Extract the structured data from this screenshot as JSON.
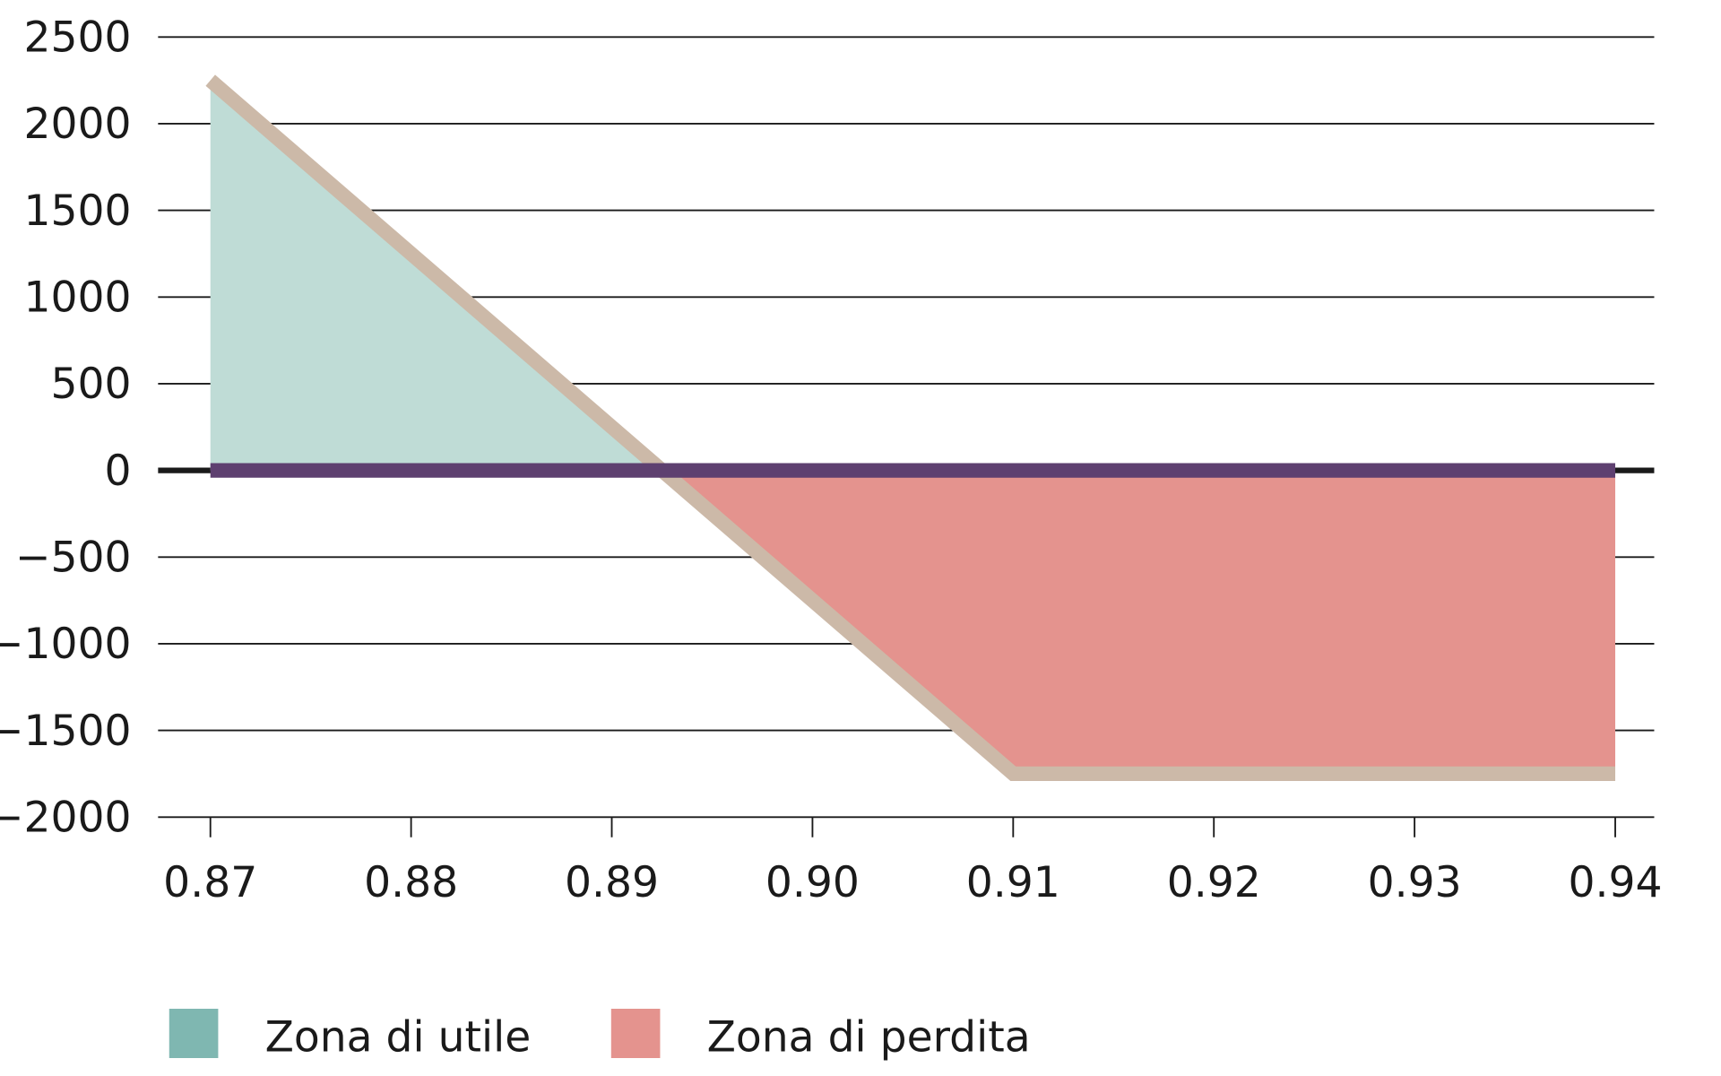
{
  "chart_data": {
    "type": "line",
    "title": "",
    "xlabel": "",
    "ylabel": "",
    "xlim": [
      0.87,
      0.94
    ],
    "ylim": [
      -2000,
      2500
    ],
    "x_ticks": [
      "0.87",
      "0.88",
      "0.89",
      "0.90",
      "0.91",
      "0.92",
      "0.93",
      "0.94"
    ],
    "y_ticks": [
      "2500",
      "2000",
      "1500",
      "1000",
      "500",
      "0",
      "−500",
      "−1000",
      "−1500",
      "−2000"
    ],
    "grid": "horizontal",
    "series": [
      {
        "points": [
          [
            0.87,
            2250
          ],
          [
            0.91,
            -1750
          ],
          [
            0.94,
            -1750
          ]
        ],
        "color": "#ccb9a8"
      },
      {
        "points": [
          [
            0.87,
            0
          ],
          [
            0.94,
            0
          ]
        ],
        "color": "#5e4070"
      }
    ],
    "breakeven_x": 0.8925,
    "legend_position": "bottom-left",
    "legend": [
      {
        "label": "Zona di utile",
        "color": "#7fb7b1",
        "fill": "#bfdcd6"
      },
      {
        "label": "Zona di perdita",
        "color": "#e4938e",
        "fill": "#e4938e"
      }
    ]
  }
}
